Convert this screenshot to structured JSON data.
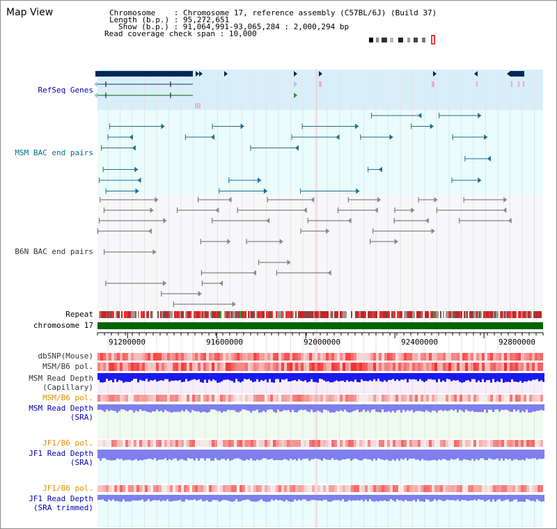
{
  "title": "Map View",
  "info": {
    "chromosome_key": "Chromosome",
    "chromosome_value": "Chromosome 17, reference assembly (C57BL/6J) (Build 37)",
    "length_key": "Length (b.p.)",
    "length_value": "95,272,651",
    "show_key": "Show (b.p.)",
    "show_value": "91,064,991-93,065,284 : 2,000,294 bp",
    "coverage_key": "Read coverage check span",
    "coverage_value": "10,000"
  },
  "tracks": {
    "refseq": "RefSeq Genes",
    "msm_bac": "MSM BAC end pairs",
    "b6n_bac": "B6N BAC end pairs",
    "repeat": "Repeat",
    "chromosome": "chromosome 17",
    "dbsnp": "dbSNP(Mouse)",
    "msm_b6_pol_1": "MSM/B6 pol.",
    "msm_depth_cap_1": "MSM Read Depth",
    "msm_depth_cap_2": "(Capillary)",
    "msm_b6_pol_2": "MSM/B6 pol.",
    "msm_depth_sra_1": "MSM Read Depth",
    "msm_depth_sra_2": "(SRA)",
    "jf1_b6_pol_1": "JF1/B6 pol.",
    "jf1_depth_sra_1": "JF1 Read Depth",
    "jf1_depth_sra_2": "(SRA)",
    "jf1_b6_pol_2": "JF1/B6 pol.",
    "jf1_depth_trim_1": "JF1 Read Depth",
    "jf1_depth_trim_2": "(SRA trimmed)"
  },
  "axis": {
    "ticks": [
      "91200000",
      "91600000",
      "92000000",
      "92400000",
      "92800000"
    ],
    "tick_positions_bp": [
      91200000,
      91600000,
      92000000,
      92400000,
      92800000
    ],
    "start_bp": 91064991,
    "end_bp": 93065284
  },
  "colors": {
    "refseq_bg": "#d8effa",
    "bac_bg": "#eafcfc",
    "gene": "#002856",
    "msm_bac": "#1a6f8a",
    "b6n_bac": "#666666",
    "chromosome": "#006400",
    "depth_blue": "#1a1aee",
    "depth_lavender": "#7f7fee",
    "pol_red": "#ee2222"
  }
}
